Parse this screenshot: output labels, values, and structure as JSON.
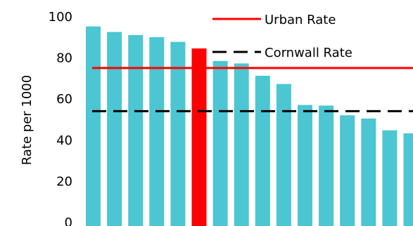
{
  "chart_data": {
    "type": "bar",
    "title": "",
    "xlabel": "",
    "ylabel": "Rate per 1000",
    "ylim": [
      0,
      100
    ],
    "yticks": [
      0,
      20,
      40,
      60,
      80,
      100
    ],
    "grid": false,
    "legend_position": "top-right",
    "series": [
      {
        "values": [
          95,
          92.3,
          90.8,
          89.8,
          87.5,
          84.3,
          78.2,
          77,
          71,
          67,
          56.8,
          56.5,
          51.8,
          50.2,
          44.5,
          43
        ],
        "color": "#4bc6d2",
        "highlight_index": 5,
        "highlight_color": "#ff0000"
      }
    ],
    "reference_lines": [
      {
        "name": "Urban Rate",
        "value": 74.8,
        "color": "#ff0000",
        "style": "solid"
      },
      {
        "name": "Cornwall Rate",
        "value": 53.8,
        "color": "#000000",
        "style": "dashed"
      }
    ]
  }
}
